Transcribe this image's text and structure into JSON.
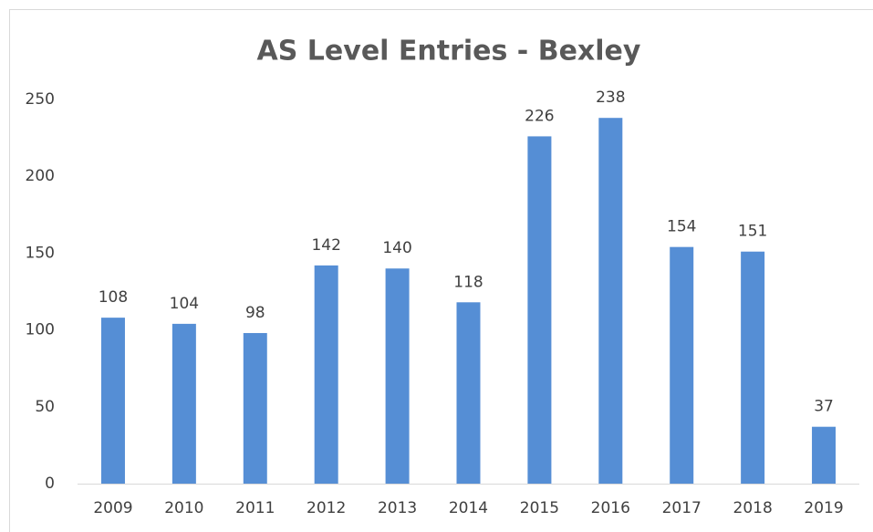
{
  "chart_data": {
    "type": "bar",
    "title": "AS Level Entries - Bexley",
    "categories": [
      "2009",
      "2010",
      "2011",
      "2012",
      "2013",
      "2014",
      "2015",
      "2016",
      "2017",
      "2018",
      "2019"
    ],
    "values": [
      108,
      104,
      98,
      142,
      140,
      118,
      226,
      238,
      154,
      151,
      37
    ],
    "color": "#558ed5",
    "ylim": [
      0,
      250
    ],
    "yticks": [
      0,
      50,
      100,
      150,
      200,
      250
    ],
    "grid": false
  }
}
